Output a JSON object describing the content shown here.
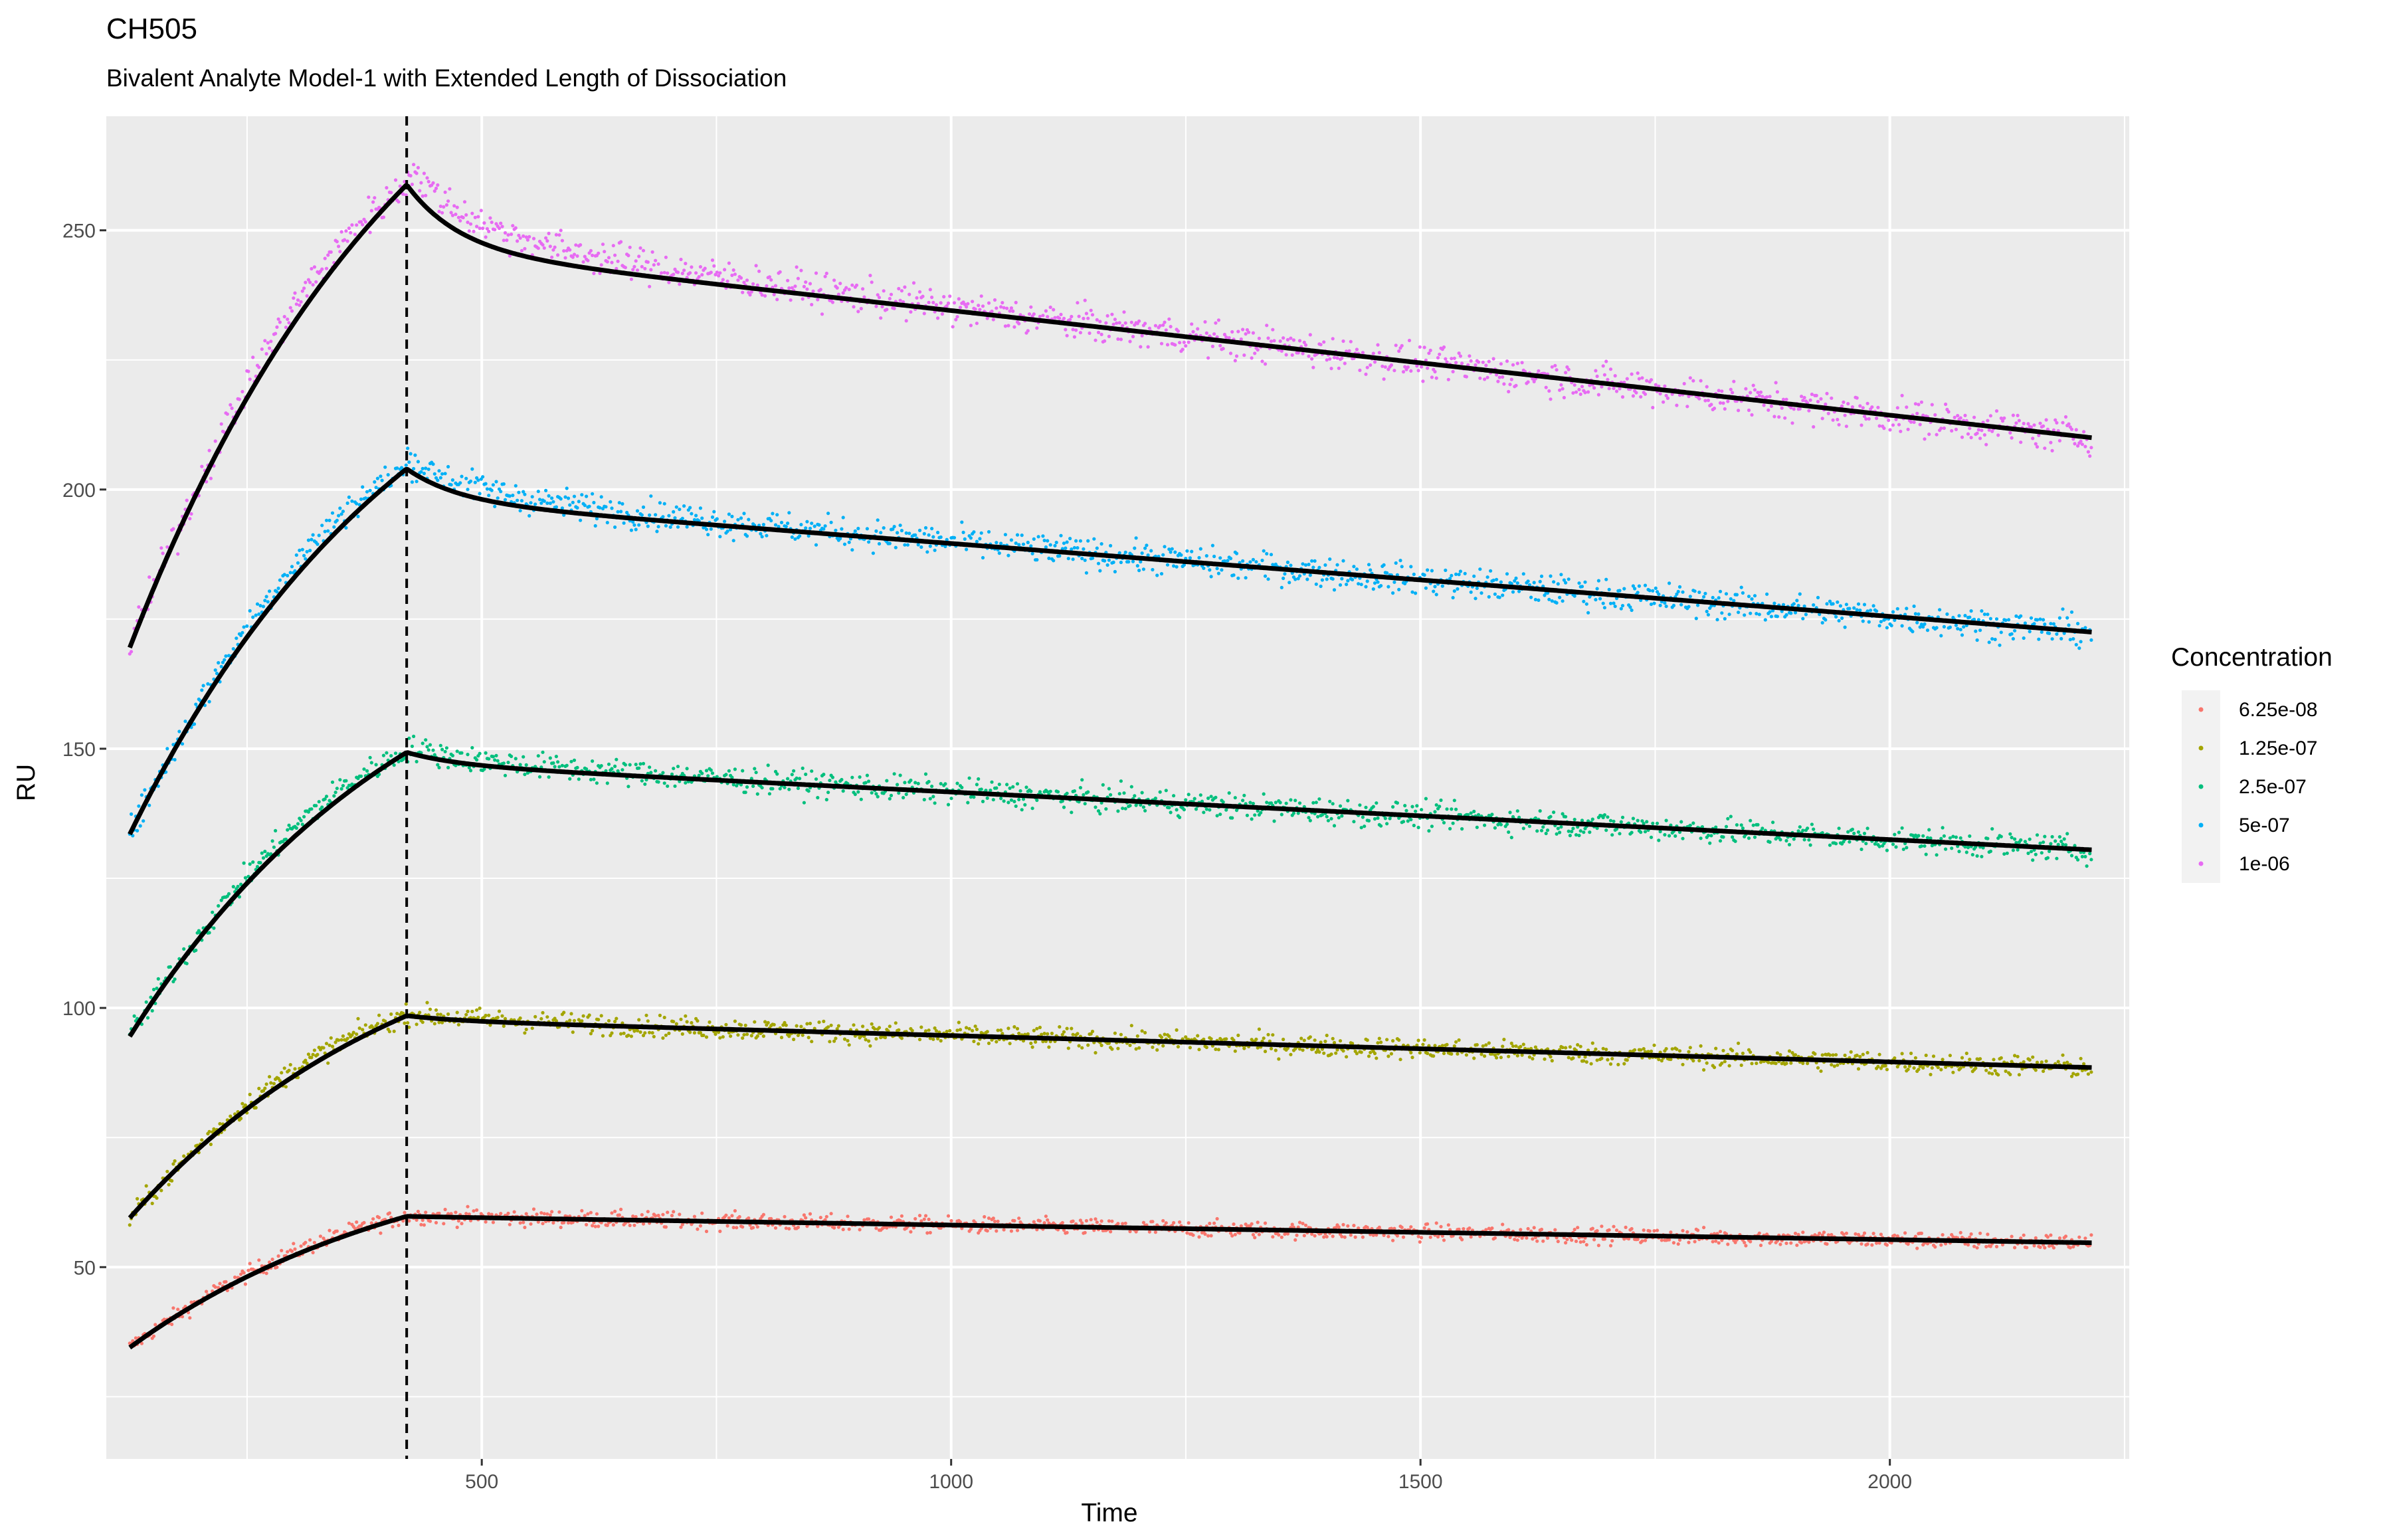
{
  "chart_data": {
    "type": "scatter",
    "title": "CH505",
    "subtitle": "Bivalent Analyte Model-1 with Extended Length of Dissociation",
    "xlabel": "Time",
    "ylabel": "RU",
    "xlim": [
      100,
      2255
    ],
    "ylim": [
      13,
      272
    ],
    "x_ticks": [
      500,
      1000,
      1500,
      2000
    ],
    "y_ticks": [
      50,
      100,
      150,
      200,
      250
    ],
    "grid": true,
    "panel_background": "#ebebeb",
    "vline_x": 420,
    "legend": {
      "title": "Concentration",
      "position": "right"
    },
    "x_range": [
      125,
      2215
    ],
    "series": [
      {
        "name": "6.25e-08",
        "color": "#F8766D",
        "fit": {
          "start": 34.5,
          "peak": 59.8,
          "dip": 59.3,
          "end": 54.7
        }
      },
      {
        "name": "1.25e-07",
        "color": "#A3A500",
        "fit": {
          "start": 59.5,
          "peak": 98.5,
          "dip": 96.8,
          "end": 88.5
        }
      },
      {
        "name": "2.5e-07",
        "color": "#00BF7D",
        "fit": {
          "start": 94.5,
          "peak": 149.3,
          "dip": 145.5,
          "end": 130.5
        }
      },
      {
        "name": "5e-07",
        "color": "#00B0F6",
        "fit": {
          "start": 133.5,
          "peak": 204.0,
          "dip": 195.5,
          "end": 172.5
        }
      },
      {
        "name": "1e-06",
        "color": "#E76BF3",
        "fit": {
          "start": 169.5,
          "peak": 258.8,
          "dip": 243.0,
          "end": 210.0
        }
      }
    ]
  }
}
